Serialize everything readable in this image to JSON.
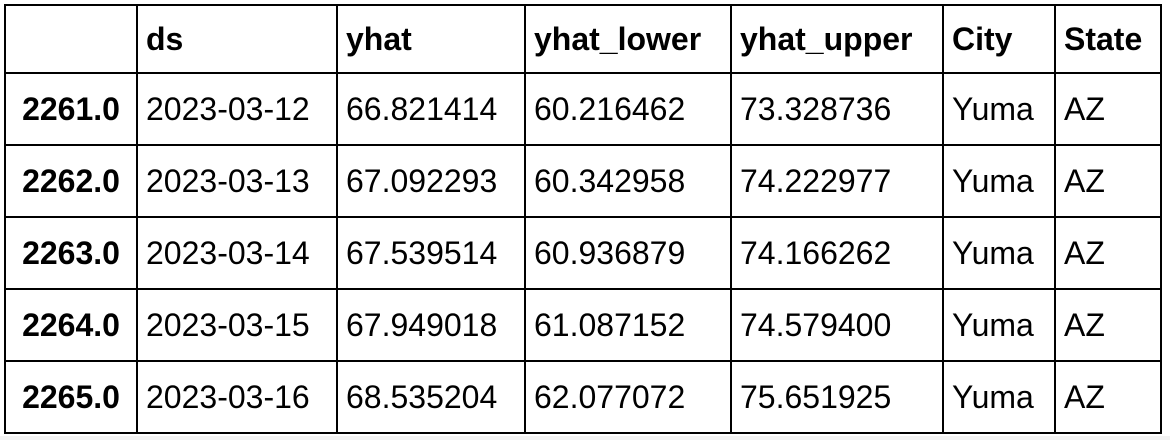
{
  "table": {
    "columns": [
      "",
      "ds",
      "yhat",
      "yhat_lower",
      "yhat_upper",
      "City",
      "State"
    ],
    "rows": [
      {
        "index": "2261.0",
        "ds": "2023-03-12",
        "yhat": "66.821414",
        "yhat_lower": "60.216462",
        "yhat_upper": "73.328736",
        "City": "Yuma",
        "State": "AZ"
      },
      {
        "index": "2262.0",
        "ds": "2023-03-13",
        "yhat": "67.092293",
        "yhat_lower": "60.342958",
        "yhat_upper": "74.222977",
        "City": "Yuma",
        "State": "AZ"
      },
      {
        "index": "2263.0",
        "ds": "2023-03-14",
        "yhat": "67.539514",
        "yhat_lower": "60.936879",
        "yhat_upper": "74.166262",
        "City": "Yuma",
        "State": "AZ"
      },
      {
        "index": "2264.0",
        "ds": "2023-03-15",
        "yhat": "67.949018",
        "yhat_lower": "61.087152",
        "yhat_upper": "74.579400",
        "City": "Yuma",
        "State": "AZ"
      },
      {
        "index": "2265.0",
        "ds": "2023-03-16",
        "yhat": "68.535204",
        "yhat_lower": "62.077072",
        "yhat_upper": "75.651925",
        "City": "Yuma",
        "State": "AZ"
      }
    ]
  }
}
